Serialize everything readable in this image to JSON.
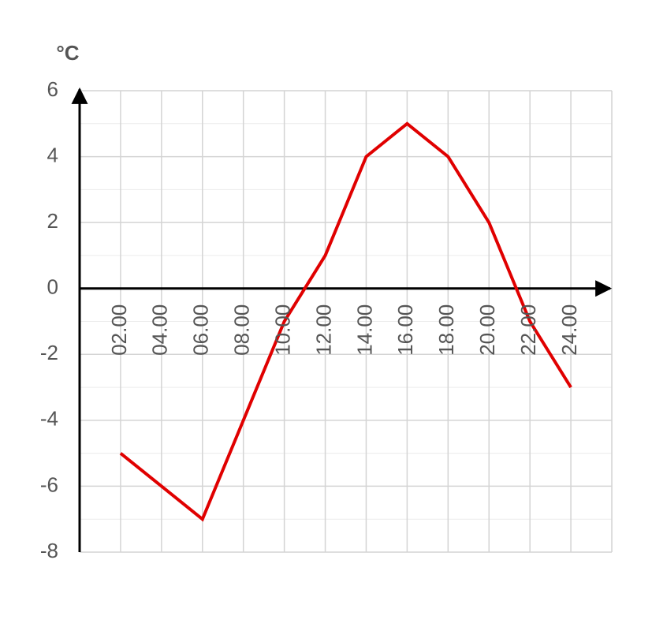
{
  "chart_data": {
    "type": "line",
    "y_label": "°C",
    "categories": [
      "02.00",
      "04.00",
      "06.00",
      "08.00",
      "10.00",
      "12.00",
      "14.00",
      "16.00",
      "18.00",
      "20.00",
      "22.00",
      "24.00"
    ],
    "values": [
      -5,
      -6,
      -7,
      -4,
      -1,
      1,
      4,
      5,
      4,
      2,
      -1,
      -3
    ],
    "color": "#e00000",
    "ylim": [
      -8,
      6
    ],
    "yticks": [
      -8,
      -6,
      -4,
      -2,
      0,
      2,
      4,
      6
    ],
    "minor_yticks": [
      -7,
      -5,
      -3,
      -1,
      1,
      3,
      5
    ],
    "grid": true
  }
}
